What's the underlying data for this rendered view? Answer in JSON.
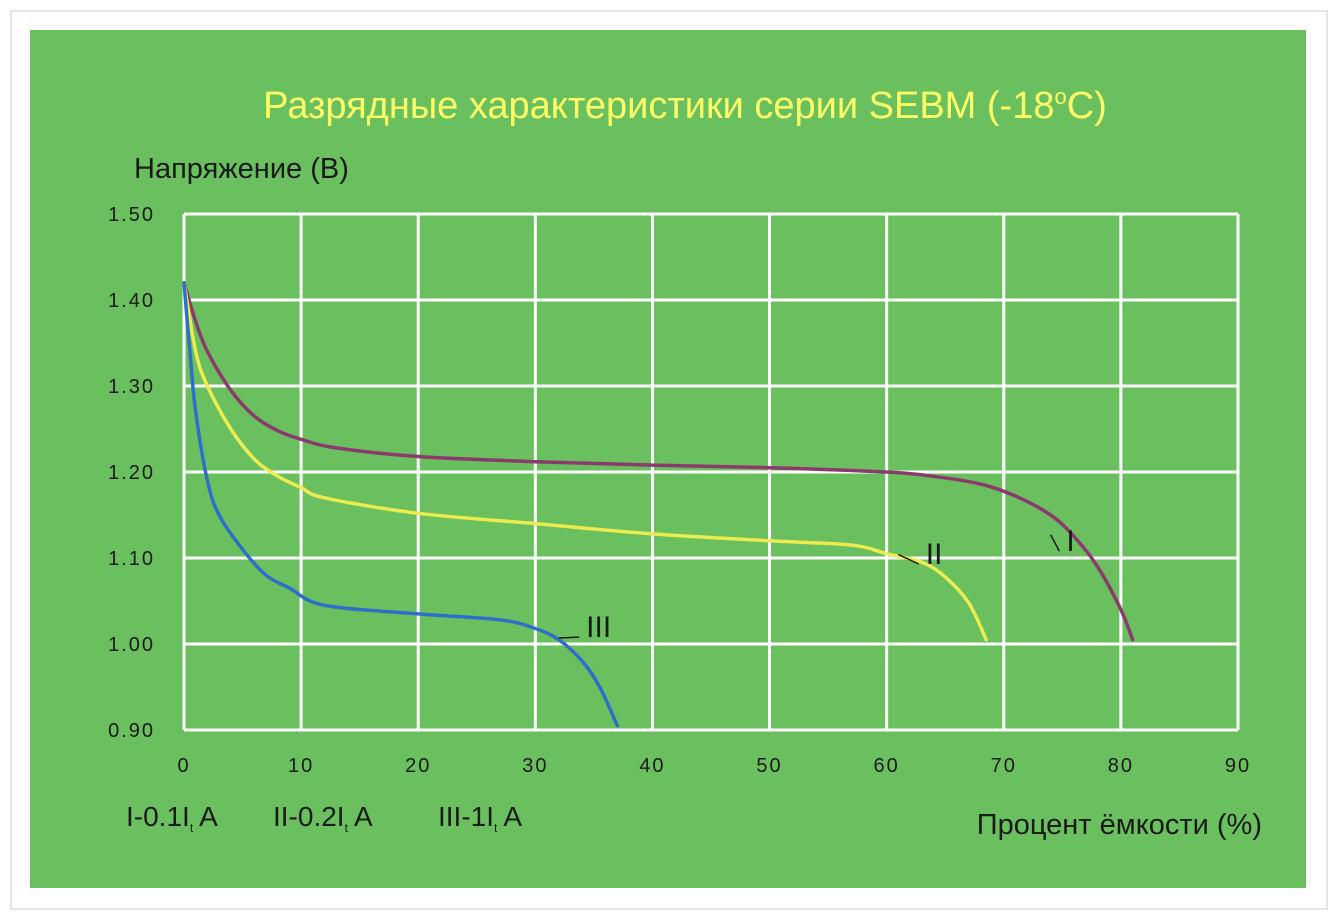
{
  "colors": {
    "panel_bg": "#6abf5e",
    "grid": "#ffffff",
    "title": "#ffff66",
    "text": "#1a1a1a",
    "series": [
      "#8b3a6e",
      "#ecec50",
      "#2f6fc9"
    ]
  },
  "chart_data": {
    "type": "line",
    "title_main": "Разрядные характеристики серии SEBM (-18",
    "title_sup": "o",
    "title_end": "C)",
    "ylabel": "Напряжение (В)",
    "xlabel": "Процент ёмкости (%)",
    "xlim": [
      0,
      90
    ],
    "ylim": [
      0.9,
      1.5
    ],
    "x_ticks": [
      "0",
      "10",
      "20",
      "30",
      "40",
      "50",
      "60",
      "70",
      "80",
      "90"
    ],
    "y_ticks": [
      "1.50",
      "1.40",
      "1.30",
      "1.20",
      "1.10",
      "1.00",
      "0.90"
    ],
    "grid": true,
    "series": [
      {
        "label": "I",
        "label_pos": [
          75,
          1.115
        ],
        "label_anchor": [
          74,
          1.127
        ],
        "points": [
          [
            0,
            1.42
          ],
          [
            1,
            1.375
          ],
          [
            2,
            1.34
          ],
          [
            4,
            1.295
          ],
          [
            6,
            1.265
          ],
          [
            8,
            1.248
          ],
          [
            10,
            1.238
          ],
          [
            13,
            1.228
          ],
          [
            20,
            1.218
          ],
          [
            30,
            1.212
          ],
          [
            40,
            1.208
          ],
          [
            50,
            1.205
          ],
          [
            60,
            1.2
          ],
          [
            64,
            1.195
          ],
          [
            68,
            1.186
          ],
          [
            71,
            1.172
          ],
          [
            74,
            1.15
          ],
          [
            76,
            1.125
          ],
          [
            78,
            1.09
          ],
          [
            80,
            1.04
          ],
          [
            81,
            1.005
          ]
        ]
      },
      {
        "label": "II",
        "label_pos": [
          63,
          1.1
        ],
        "label_anchor": [
          61,
          1.104
        ],
        "points": [
          [
            0,
            1.42
          ],
          [
            1,
            1.34
          ],
          [
            2,
            1.3
          ],
          [
            4,
            1.25
          ],
          [
            6,
            1.215
          ],
          [
            8,
            1.195
          ],
          [
            10,
            1.182
          ],
          [
            12,
            1.17
          ],
          [
            20,
            1.152
          ],
          [
            30,
            1.14
          ],
          [
            40,
            1.128
          ],
          [
            50,
            1.12
          ],
          [
            57,
            1.115
          ],
          [
            60,
            1.105
          ],
          [
            63,
            1.095
          ],
          [
            65,
            1.078
          ],
          [
            67,
            1.048
          ],
          [
            68.5,
            1.005
          ]
        ]
      },
      {
        "label": "III",
        "label_pos": [
          34,
          1.015
        ],
        "label_anchor": [
          32,
          1.007
        ],
        "points": [
          [
            0,
            1.42
          ],
          [
            0.5,
            1.34
          ],
          [
            1,
            1.27
          ],
          [
            2,
            1.19
          ],
          [
            3,
            1.15
          ],
          [
            5,
            1.11
          ],
          [
            7,
            1.08
          ],
          [
            9,
            1.065
          ],
          [
            12,
            1.045
          ],
          [
            20,
            1.035
          ],
          [
            27,
            1.028
          ],
          [
            30,
            1.018
          ],
          [
            32,
            1.005
          ],
          [
            34,
            0.98
          ],
          [
            35.5,
            0.95
          ],
          [
            37,
            0.905
          ]
        ]
      }
    ],
    "legend": [
      {
        "lead": "I-0.1I",
        "sub": "t",
        "tail": "A"
      },
      {
        "lead": "II-0.2I",
        "sub": "t",
        "tail": "A"
      },
      {
        "lead": "III-1I",
        "sub": "t",
        "tail": "A"
      }
    ]
  }
}
